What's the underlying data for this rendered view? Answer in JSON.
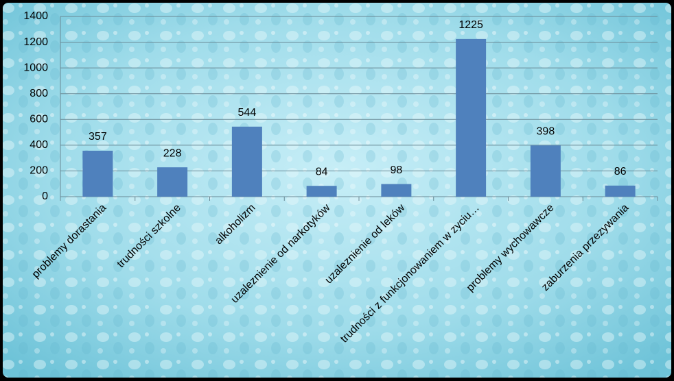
{
  "chart_data": {
    "type": "bar",
    "categories": [
      "problemy dorastania",
      "trudności szkolne",
      "alkoholizm",
      "uzaleznienie od narkotyków",
      "uzaleznienie od leków",
      "trudności z funkcjonowaniem w zyciu…",
      "problemy wychowawcze",
      "zaburzenia przezywania"
    ],
    "values": [
      357,
      228,
      544,
      84,
      98,
      1225,
      398,
      86
    ],
    "color": "#4f81bd",
    "ylim": [
      0,
      1400
    ],
    "yticks": [
      0,
      200,
      400,
      600,
      800,
      1000,
      1200,
      1400
    ],
    "grid": true
  }
}
